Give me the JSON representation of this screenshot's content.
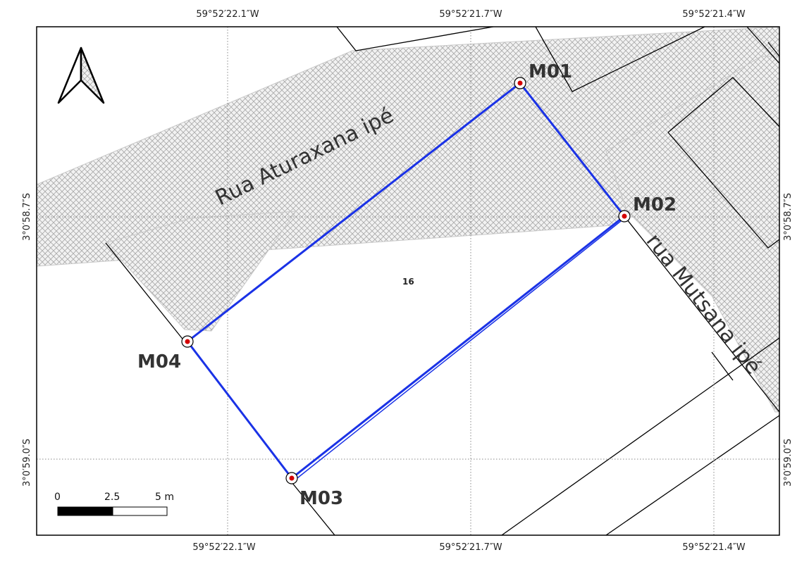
{
  "map": {
    "top_coords": [
      "59°52′22.1″W",
      "59°52′21.7″W",
      "59°52′21.4″W"
    ],
    "bottom_coords": [
      "59°52′22.1″W",
      "59°52′21.7″W",
      "59°52′21.4″W"
    ],
    "left_coords": [
      "3°0′58.7″S",
      "3°0′59.0″S"
    ],
    "right_coords": [
      "3°0′58.7″S",
      "3°0′59.0″S"
    ],
    "streets": [
      "Rua Aturaxana ipé",
      "rua Mutsana ipé"
    ],
    "markers": [
      "M01",
      "M02",
      "M03",
      "M04"
    ],
    "lot_number": "16",
    "scale_bar": {
      "labels": [
        "0",
        "2.5",
        "5 m"
      ]
    },
    "colors": {
      "boundary": "#1a32e6",
      "marker_fill": "#d40000",
      "street_hatch": "#b5b5b5",
      "parcel_lines": "#000000",
      "grid": "#888888"
    },
    "north_arrow_icon": "north-arrow-icon"
  }
}
